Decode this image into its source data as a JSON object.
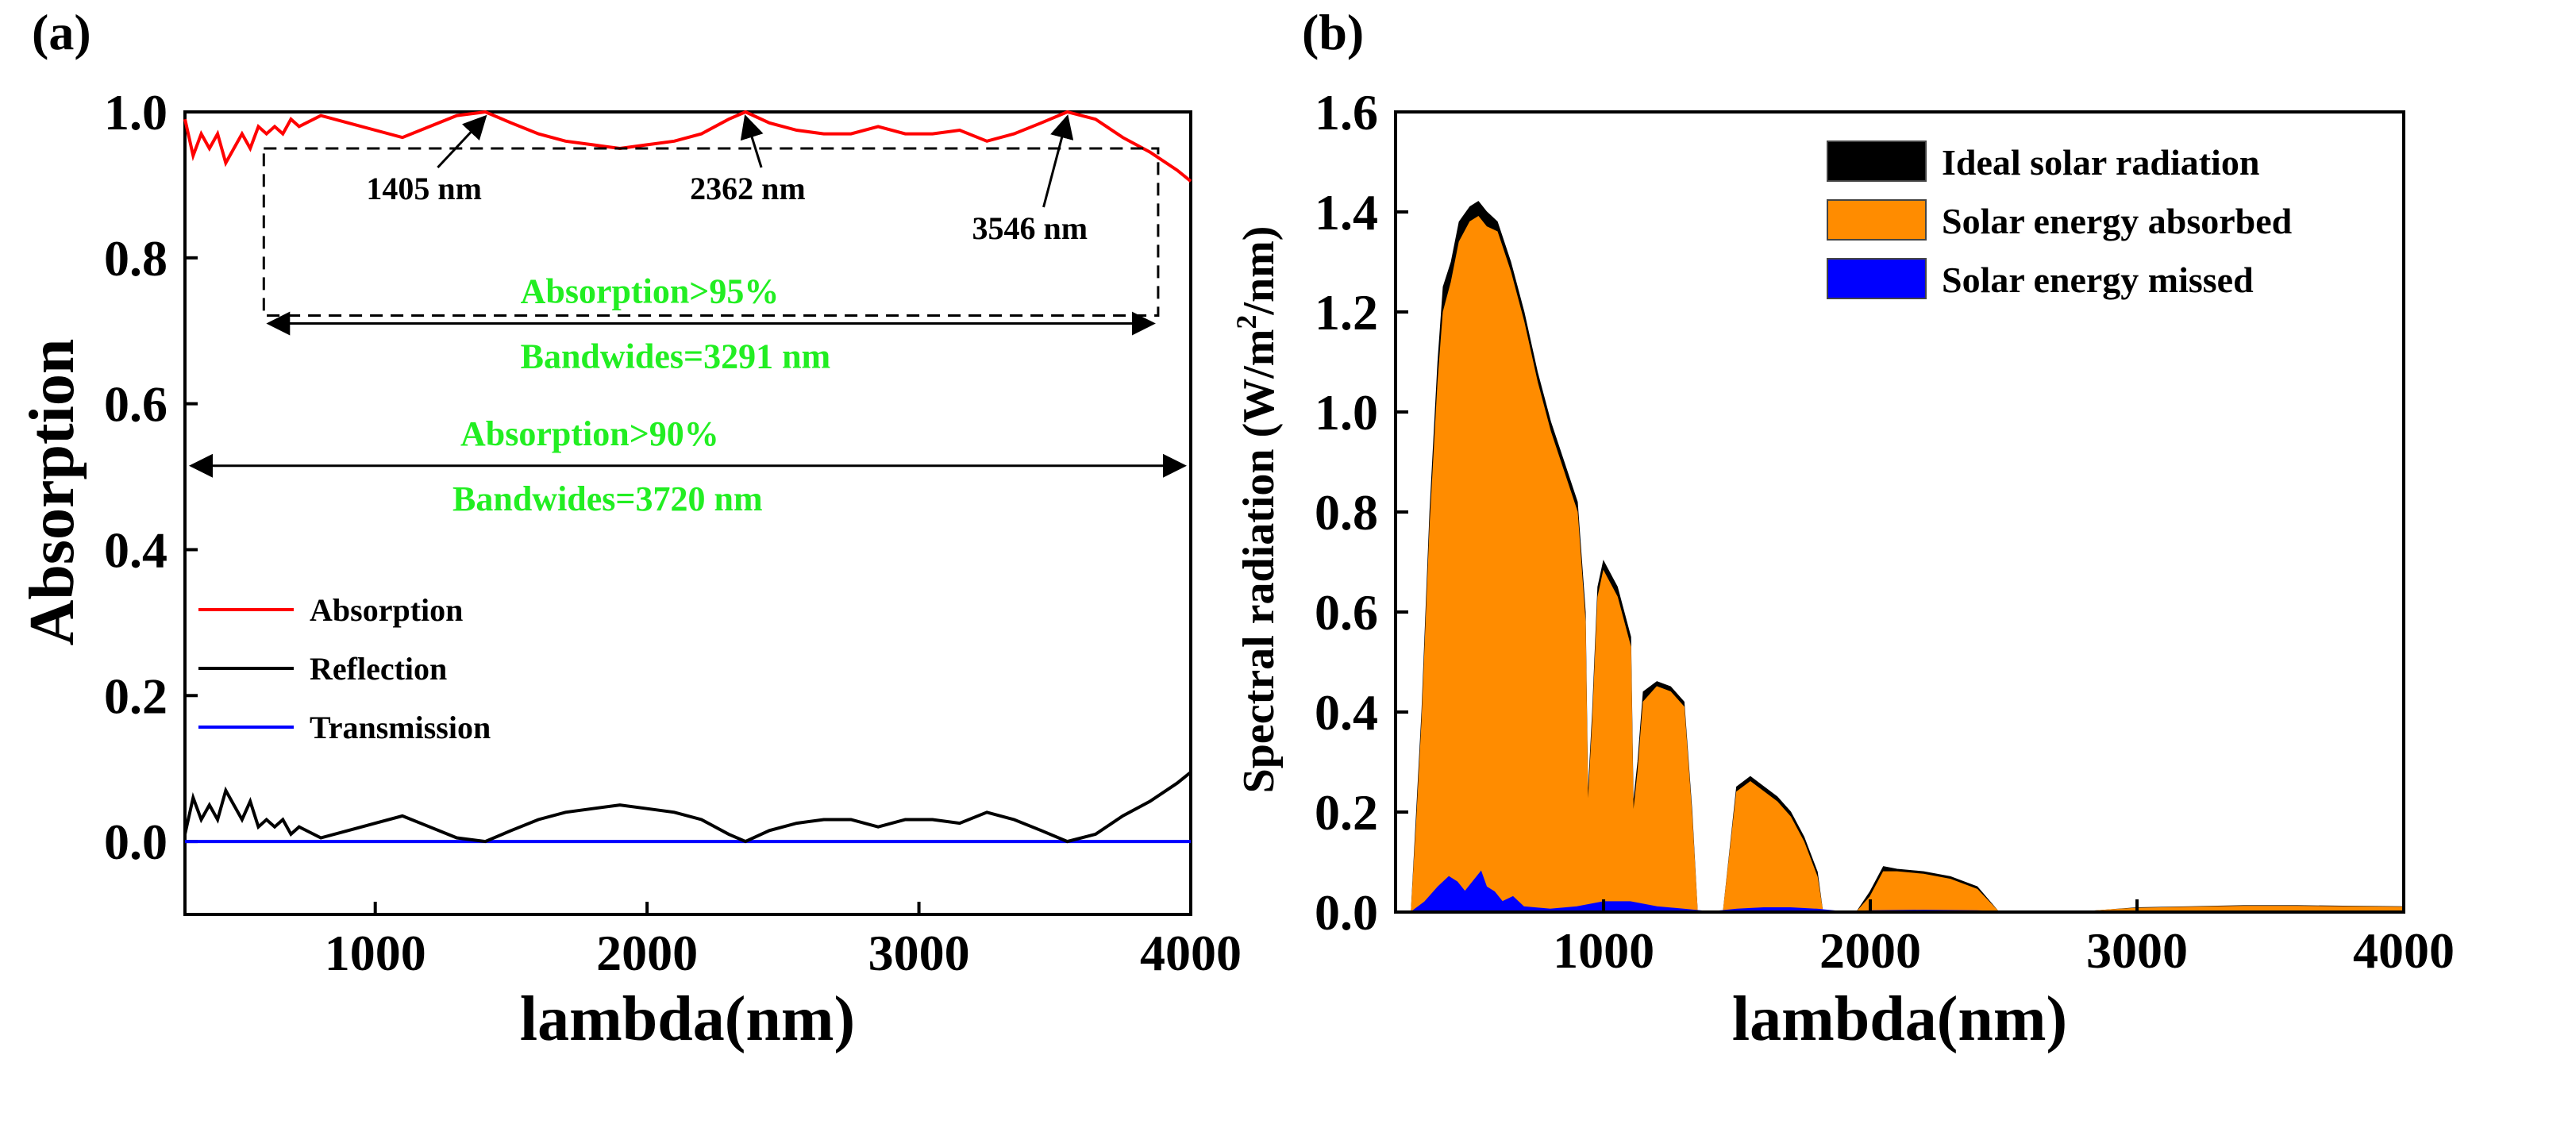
{
  "chart_data": [
    {
      "panel": "(a)",
      "type": "line",
      "xlabel": "lambda(nm)",
      "ylabel": "Absorption",
      "xlim": [
        300,
        4000
      ],
      "ylim": [
        -0.1,
        1.0
      ],
      "x_ticks": [
        "1000",
        "2000",
        "3000",
        "4000"
      ],
      "y_ticks": [
        "0.0",
        "0.2",
        "0.4",
        "0.6",
        "0.8",
        "1.0"
      ],
      "legend": [
        {
          "label": "Absorption",
          "color": "#ff0000"
        },
        {
          "label": "Reflection",
          "color": "#000000"
        },
        {
          "label": "Transmission",
          "color": "#0000ff"
        }
      ],
      "series": [
        {
          "name": "Absorption",
          "color": "#ff0000",
          "x": [
            300,
            330,
            360,
            390,
            420,
            450,
            480,
            510,
            540,
            570,
            600,
            630,
            660,
            690,
            720,
            800,
            900,
            1000,
            1100,
            1200,
            1300,
            1405,
            1500,
            1600,
            1700,
            1800,
            1900,
            2000,
            2100,
            2200,
            2300,
            2362,
            2450,
            2550,
            2650,
            2750,
            2850,
            2950,
            3050,
            3150,
            3250,
            3350,
            3450,
            3546,
            3650,
            3750,
            3850,
            3950,
            4000
          ],
          "y": [
            0.99,
            0.94,
            0.97,
            0.95,
            0.97,
            0.93,
            0.95,
            0.97,
            0.95,
            0.98,
            0.97,
            0.98,
            0.97,
            0.99,
            0.98,
            0.995,
            0.985,
            0.975,
            0.965,
            0.98,
            0.995,
            1.0,
            0.985,
            0.97,
            0.96,
            0.955,
            0.95,
            0.955,
            0.96,
            0.97,
            0.99,
            1.0,
            0.985,
            0.975,
            0.97,
            0.97,
            0.98,
            0.97,
            0.97,
            0.975,
            0.96,
            0.97,
            0.985,
            1.0,
            0.99,
            0.965,
            0.945,
            0.92,
            0.905
          ]
        },
        {
          "name": "Reflection",
          "color": "#000000",
          "x": [
            300,
            330,
            360,
            390,
            420,
            450,
            480,
            510,
            540,
            570,
            600,
            630,
            660,
            690,
            720,
            800,
            900,
            1000,
            1100,
            1200,
            1300,
            1405,
            1500,
            1600,
            1700,
            1800,
            1900,
            2000,
            2100,
            2200,
            2300,
            2362,
            2450,
            2550,
            2650,
            2750,
            2850,
            2950,
            3050,
            3150,
            3250,
            3350,
            3450,
            3546,
            3650,
            3750,
            3850,
            3950,
            4000
          ],
          "y": [
            0.01,
            0.06,
            0.03,
            0.05,
            0.03,
            0.07,
            0.05,
            0.03,
            0.055,
            0.02,
            0.03,
            0.02,
            0.03,
            0.01,
            0.02,
            0.005,
            0.015,
            0.025,
            0.035,
            0.02,
            0.005,
            0.0,
            0.015,
            0.03,
            0.04,
            0.045,
            0.05,
            0.045,
            0.04,
            0.03,
            0.01,
            0.0,
            0.015,
            0.025,
            0.03,
            0.03,
            0.02,
            0.03,
            0.03,
            0.025,
            0.04,
            0.03,
            0.015,
            0.0,
            0.01,
            0.035,
            0.055,
            0.08,
            0.095
          ]
        },
        {
          "name": "Transmission",
          "color": "#0000ff",
          "x": [
            300,
            4000
          ],
          "y": [
            0.0,
            0.0
          ]
        }
      ],
      "annotations": {
        "peaks": [
          {
            "label": "1405 nm",
            "x": 1405,
            "y": 1.0
          },
          {
            "label": "2362 nm",
            "x": 2362,
            "y": 1.0
          },
          {
            "label": "3546 nm",
            "x": 3546,
            "y": 1.0
          }
        ],
        "box_threshold": 0.95,
        "box_range": [
          590,
          3880
        ],
        "bandwidth_95_text": "Absorption>95%",
        "bandwidth_95_value": "Bandwides=3291 nm",
        "bandwidth_90_text": "Absorption>90%",
        "bandwidth_90_value": "Bandwides=3720 nm",
        "arrow90_y": 0.515,
        "arrow95_y": 0.71,
        "green_color": "#22ee22"
      }
    },
    {
      "panel": "(b)",
      "type": "area",
      "xlabel": "lambda(nm)",
      "ylabel_main": "Spectral radiation (W/m",
      "ylabel_sup": "2",
      "ylabel_end": "/nm)",
      "xlim": [
        220,
        4000
      ],
      "ylim": [
        0,
        1.6
      ],
      "x_ticks": [
        "1000",
        "2000",
        "3000",
        "4000"
      ],
      "y_ticks": [
        "0.0",
        "0.2",
        "0.4",
        "0.6",
        "0.8",
        "1.0",
        "1.2",
        "1.4",
        "1.6"
      ],
      "legend": [
        {
          "label": "Ideal solar radiation",
          "color": "#000000"
        },
        {
          "label": "Solar energy absorbed",
          "color": "#ff8c00"
        },
        {
          "label": "Solar energy missed",
          "color": "#0000ff"
        }
      ],
      "series": [
        {
          "name": "Ideal solar radiation",
          "color": "#000000",
          "x": [
            280,
            300,
            320,
            350,
            380,
            400,
            430,
            460,
            500,
            530,
            560,
            600,
            650,
            700,
            750,
            800,
            850,
            900,
            930,
            940,
            960,
            980,
            1000,
            1050,
            1100,
            1110,
            1130,
            1150,
            1200,
            1250,
            1300,
            1330,
            1350,
            1400,
            1450,
            1500,
            1550,
            1600,
            1650,
            1700,
            1750,
            1800,
            1820,
            1900,
            1950,
            2000,
            2050,
            2100,
            2200,
            2300,
            2400,
            2480,
            2500,
            2800,
            2900,
            3000,
            3200,
            3400,
            3600,
            3800,
            4000
          ],
          "y": [
            0.0,
            0.2,
            0.4,
            0.8,
            1.1,
            1.25,
            1.3,
            1.38,
            1.41,
            1.42,
            1.4,
            1.38,
            1.3,
            1.2,
            1.08,
            0.98,
            0.9,
            0.82,
            0.6,
            0.2,
            0.4,
            0.65,
            0.7,
            0.65,
            0.55,
            0.2,
            0.3,
            0.44,
            0.46,
            0.45,
            0.42,
            0.2,
            0.0,
            0.0,
            0.0,
            0.25,
            0.27,
            0.25,
            0.23,
            0.2,
            0.15,
            0.08,
            0.0,
            0.0,
            0.0,
            0.04,
            0.09,
            0.085,
            0.08,
            0.07,
            0.05,
            0.0,
            0.0,
            0.0,
            0.004,
            0.008,
            0.01,
            0.012,
            0.012,
            0.011,
            0.01
          ]
        },
        {
          "name": "Solar energy absorbed",
          "color": "#ff8c00",
          "x": [
            280,
            300,
            320,
            350,
            380,
            400,
            430,
            460,
            500,
            530,
            560,
            600,
            650,
            700,
            750,
            800,
            850,
            900,
            930,
            940,
            960,
            980,
            1000,
            1050,
            1100,
            1110,
            1130,
            1150,
            1200,
            1250,
            1300,
            1330,
            1350,
            1400,
            1450,
            1500,
            1550,
            1600,
            1650,
            1700,
            1750,
            1800,
            1820,
            1900,
            1950,
            2000,
            2050,
            2100,
            2200,
            2300,
            2400,
            2480,
            2500,
            2800,
            2900,
            3000,
            3200,
            3400,
            3600,
            3800,
            4000
          ],
          "y": [
            0.0,
            0.18,
            0.38,
            0.77,
            1.06,
            1.2,
            1.26,
            1.34,
            1.38,
            1.39,
            1.37,
            1.36,
            1.28,
            1.18,
            1.06,
            0.96,
            0.88,
            0.8,
            0.58,
            0.18,
            0.38,
            0.63,
            0.68,
            0.63,
            0.53,
            0.18,
            0.28,
            0.42,
            0.45,
            0.44,
            0.41,
            0.19,
            0.0,
            0.0,
            0.0,
            0.24,
            0.26,
            0.24,
            0.22,
            0.19,
            0.14,
            0.07,
            0.0,
            0.0,
            0.0,
            0.03,
            0.08,
            0.08,
            0.075,
            0.065,
            0.045,
            0.0,
            0.0,
            0.0,
            0.004,
            0.007,
            0.009,
            0.011,
            0.011,
            0.01,
            0.009
          ]
        },
        {
          "name": "Solar energy missed",
          "color": "#0000ff",
          "x": [
            280,
            330,
            380,
            420,
            450,
            480,
            510,
            540,
            560,
            590,
            620,
            660,
            700,
            800,
            900,
            1000,
            1100,
            1200,
            1300,
            1400,
            1500,
            1600,
            1700,
            1800,
            1900,
            2000,
            2200,
            2400,
            2500,
            4000
          ],
          "y": [
            0.0,
            0.02,
            0.05,
            0.07,
            0.06,
            0.04,
            0.06,
            0.08,
            0.05,
            0.04,
            0.02,
            0.03,
            0.01,
            0.005,
            0.01,
            0.02,
            0.02,
            0.01,
            0.005,
            0.0,
            0.005,
            0.008,
            0.008,
            0.005,
            0.0,
            0.002,
            0.003,
            0.002,
            0.0,
            0.0
          ]
        }
      ]
    }
  ]
}
